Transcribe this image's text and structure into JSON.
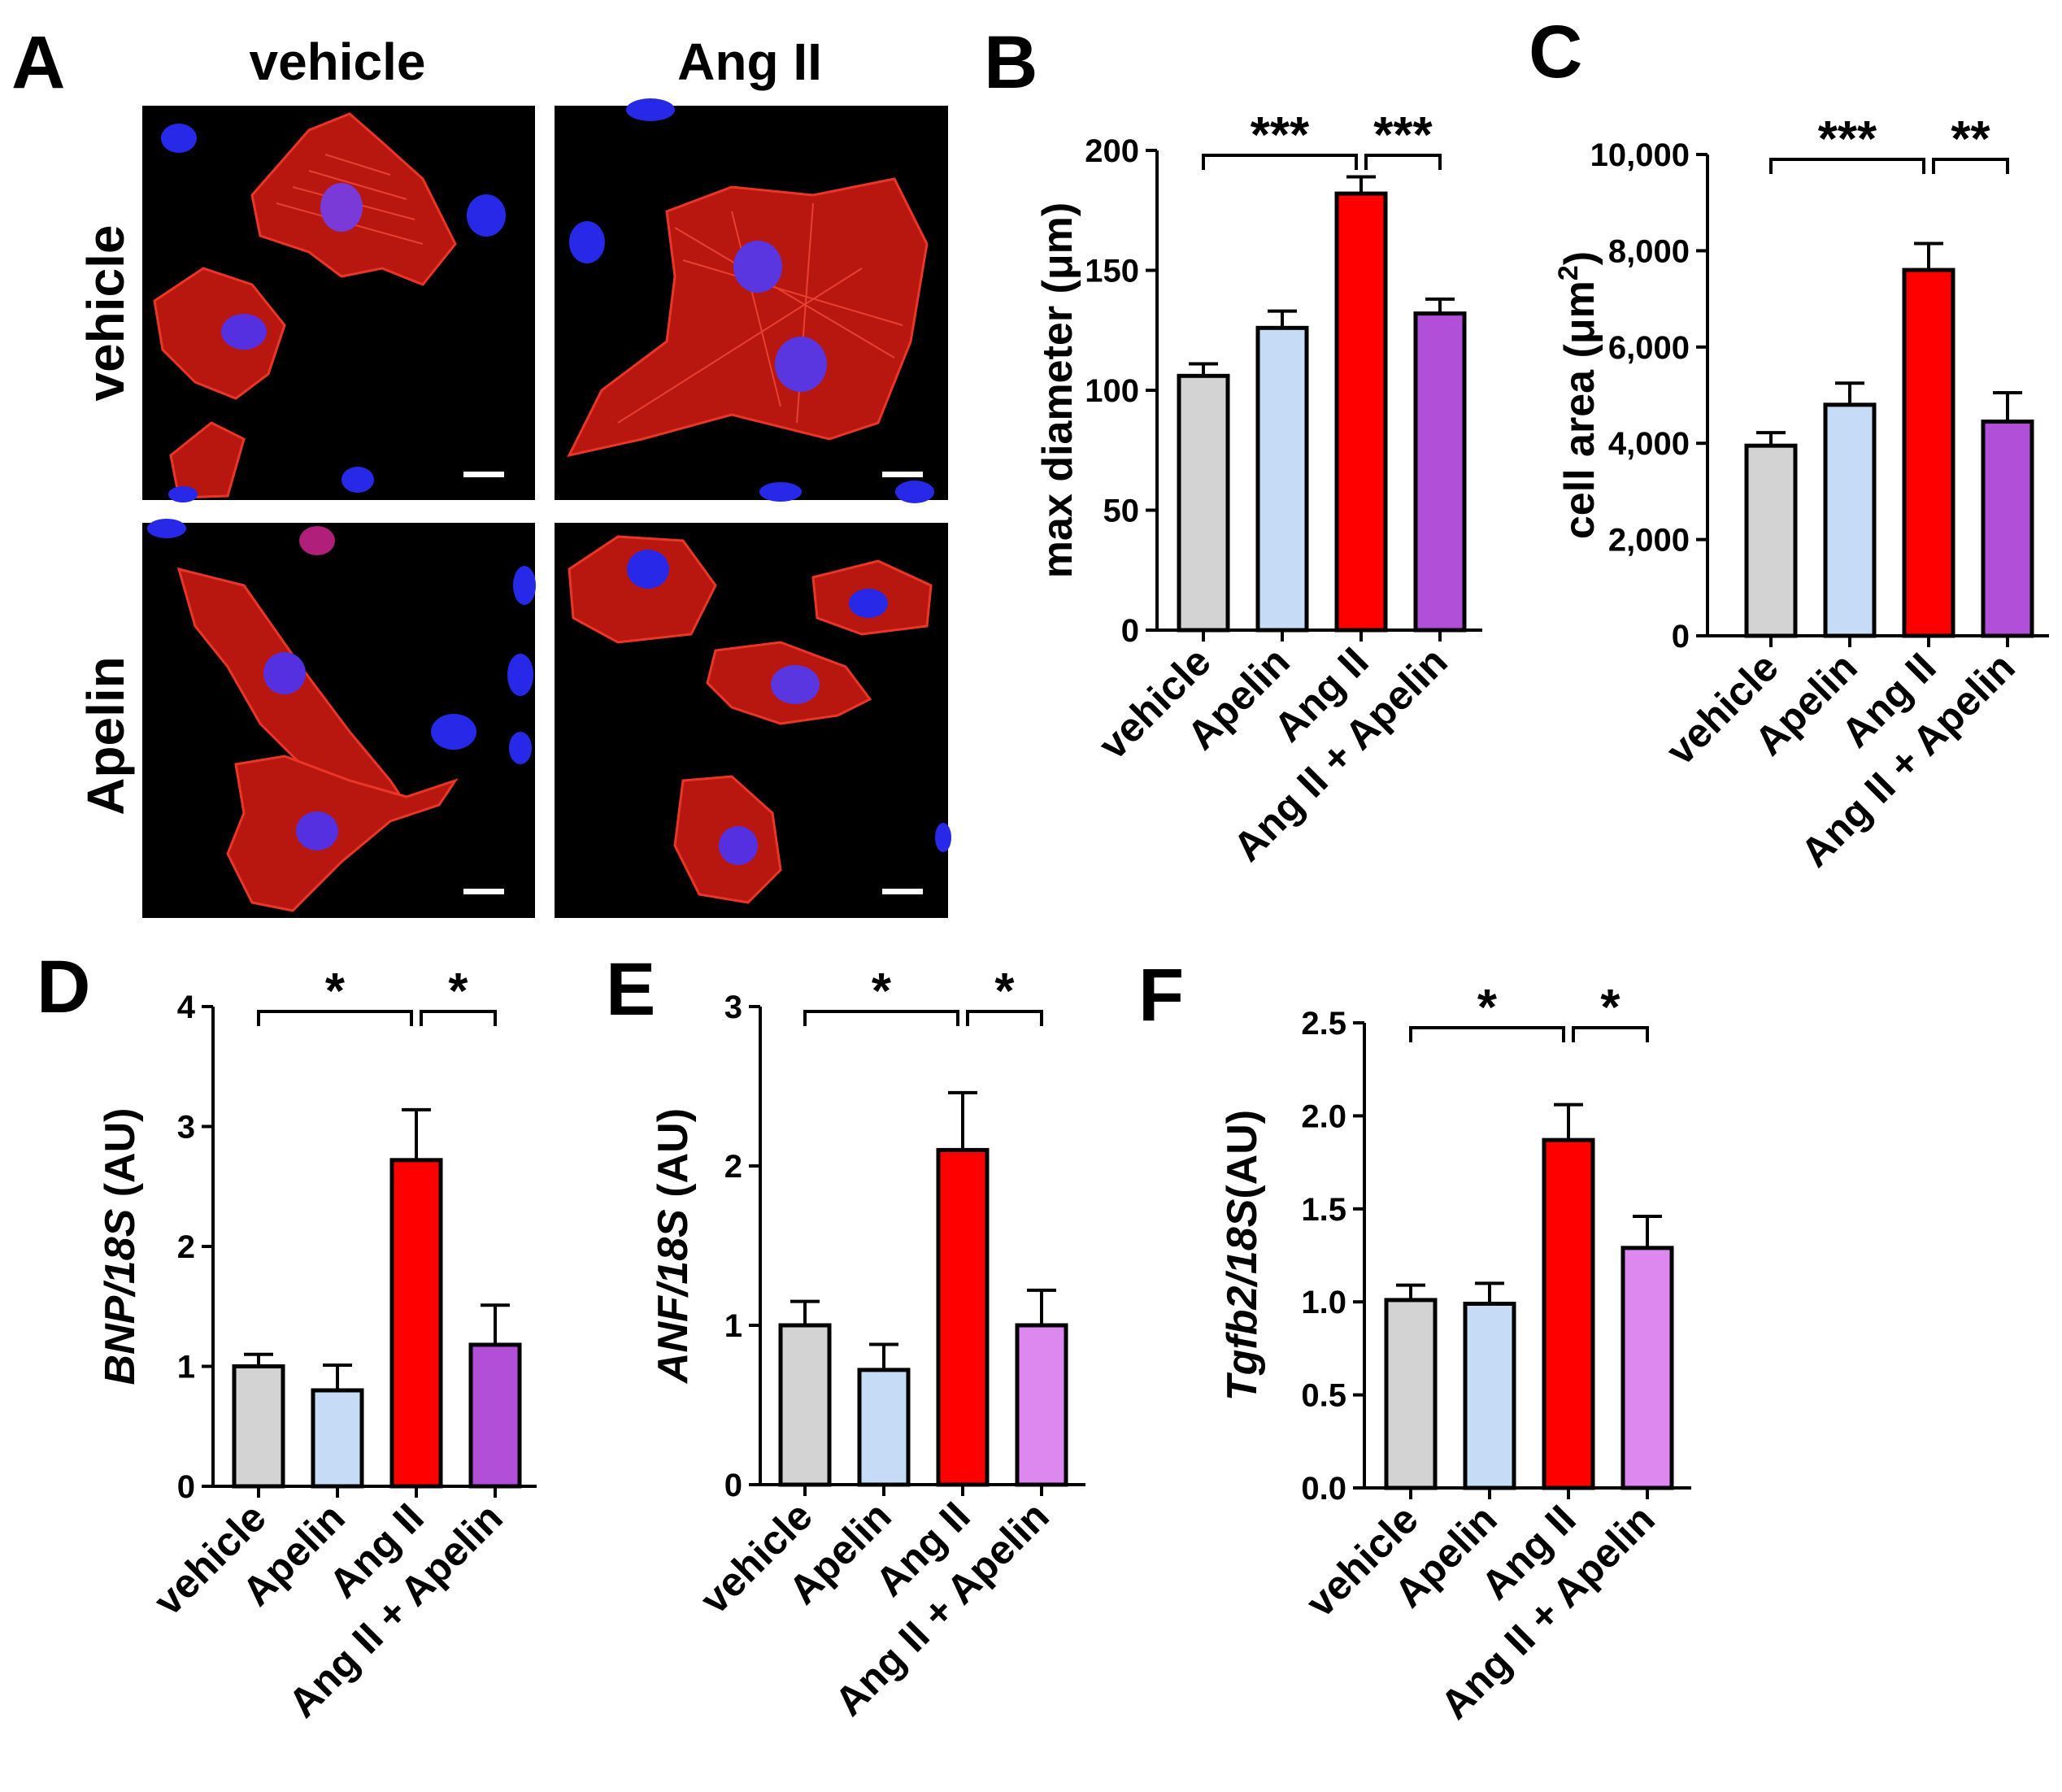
{
  "colors": {
    "vehicle": "#d3d3d3",
    "Apelin": "#c6dcf6",
    "Ang II": "#ff0000",
    "Ang II + Apelin": "#b24fd8",
    "Ang II + Apelin light": "#dd88ef",
    "actin_stain": "#e02018",
    "nuclei_stain": "#2020f0",
    "micrograph_background": "#000000"
  },
  "panel_a": {
    "letter": "A",
    "col_labels": [
      "vehicle",
      "Ang II"
    ],
    "row_labels": [
      "vehicle",
      "Apelin"
    ],
    "images": [
      {
        "name": "vehicle-vehicle",
        "description_icon": "fluorescence-micrograph"
      },
      {
        "name": "vehicle-angii",
        "description_icon": "fluorescence-micrograph"
      },
      {
        "name": "apelin-vehicle",
        "description_icon": "fluorescence-micrograph"
      },
      {
        "name": "apelin-angii",
        "description_icon": "fluorescence-micrograph"
      }
    ]
  },
  "chart_data": [
    {
      "panel": "B",
      "type": "bar",
      "ylabel": "max diameter (μm)",
      "ylim": [
        0,
        200
      ],
      "yticks": [
        "0",
        "50",
        "100",
        "150",
        "200"
      ],
      "categories": [
        "vehicle",
        "Apelin",
        "Ang II",
        "Ang II + Apelin"
      ],
      "values": [
        106,
        126,
        182,
        132
      ],
      "errors": [
        5,
        7,
        7,
        6
      ],
      "bar_colors": [
        "#d3d3d3",
        "#c6dcf6",
        "#ff0000",
        "#b24fd8"
      ],
      "significance": [
        {
          "from": "vehicle",
          "to": "Ang II",
          "label": "***"
        },
        {
          "from": "Ang II",
          "to": "Ang II + Apelin",
          "label": "***"
        }
      ]
    },
    {
      "panel": "C",
      "type": "bar",
      "ylabel": "cell area (μm²)",
      "ylim": [
        0,
        10000
      ],
      "yticks": [
        "0",
        "2,000",
        "4,000",
        "6,000",
        "8,000",
        "10,000"
      ],
      "categories": [
        "vehicle",
        "Apelin",
        "Ang II",
        "Ang II + Apelin"
      ],
      "values": [
        3950,
        4800,
        7600,
        4450
      ],
      "errors": [
        270,
        450,
        550,
        600
      ],
      "bar_colors": [
        "#d3d3d3",
        "#c6dcf6",
        "#ff0000",
        "#b24fd8"
      ],
      "significance": [
        {
          "from": "vehicle",
          "to": "Ang II",
          "label": "***"
        },
        {
          "from": "Ang II",
          "to": "Ang II + Apelin",
          "label": "**"
        }
      ]
    },
    {
      "panel": "D",
      "type": "bar",
      "ylabel": "BNP/18S (AU)",
      "ylim": [
        0,
        4
      ],
      "yticks": [
        "0",
        "1",
        "2",
        "3",
        "4"
      ],
      "categories": [
        "vehicle",
        "Apelin",
        "Ang II",
        "Ang II + Apelin"
      ],
      "values": [
        1.0,
        0.8,
        2.72,
        1.18
      ],
      "errors": [
        0.1,
        0.21,
        0.42,
        0.33
      ],
      "bar_colors": [
        "#d3d3d3",
        "#c6dcf6",
        "#ff0000",
        "#b24fd8"
      ],
      "significance": [
        {
          "from": "vehicle",
          "to": "Ang II",
          "label": "*"
        },
        {
          "from": "Ang II",
          "to": "Ang II + Apelin",
          "label": "*"
        }
      ]
    },
    {
      "panel": "E",
      "type": "bar",
      "ylabel": "ANF/18S (AU)",
      "ylim": [
        0,
        3
      ],
      "yticks": [
        "0",
        "1",
        "2",
        "3"
      ],
      "categories": [
        "vehicle",
        "Apelin",
        "Ang II",
        "Ang II + Apelin"
      ],
      "values": [
        1.0,
        0.72,
        2.1,
        1.0
      ],
      "errors": [
        0.15,
        0.16,
        0.36,
        0.22
      ],
      "bar_colors": [
        "#d3d3d3",
        "#c6dcf6",
        "#ff0000",
        "#dd88ef"
      ],
      "significance": [
        {
          "from": "vehicle",
          "to": "Ang II",
          "label": "*"
        },
        {
          "from": "Ang II",
          "to": "Ang II + Apelin",
          "label": "*"
        }
      ]
    },
    {
      "panel": "F",
      "type": "bar",
      "ylabel": "Tgfb2/18S(AU)",
      "ylim": [
        0,
        2.5
      ],
      "yticks": [
        "0.0",
        "0.5",
        "1.0",
        "1.5",
        "2.0",
        "2.5"
      ],
      "categories": [
        "vehicle",
        "Apelin",
        "Ang II",
        "Ang II + Apelin"
      ],
      "values": [
        1.01,
        0.99,
        1.87,
        1.29
      ],
      "errors": [
        0.08,
        0.11,
        0.19,
        0.17
      ],
      "bar_colors": [
        "#d3d3d3",
        "#c6dcf6",
        "#ff0000",
        "#dd88ef"
      ],
      "significance": [
        {
          "from": "vehicle",
          "to": "Ang II",
          "label": "*"
        },
        {
          "from": "Ang II",
          "to": "Ang II + Apelin",
          "label": "*"
        }
      ]
    }
  ]
}
